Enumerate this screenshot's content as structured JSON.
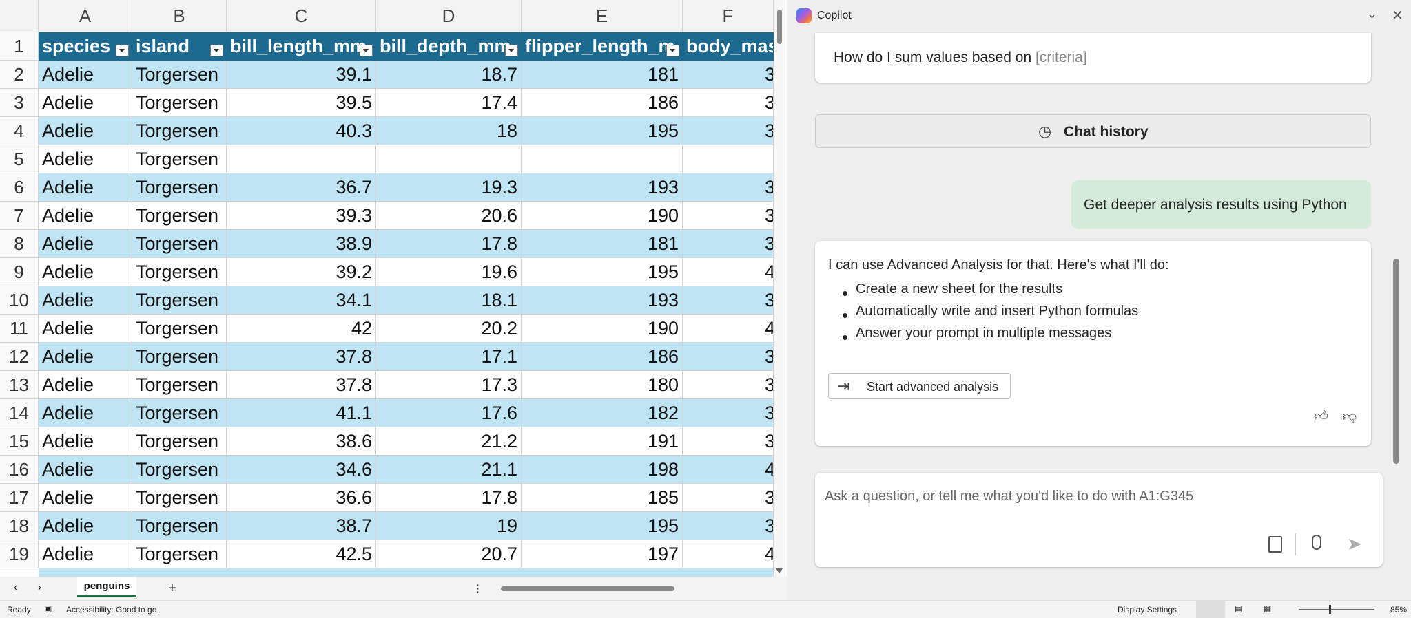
{
  "spreadsheet": {
    "column_letters": [
      "A",
      "B",
      "C",
      "D",
      "E",
      "F"
    ],
    "headers": [
      "species",
      "island",
      "bill_length_mm",
      "bill_depth_mm",
      "flipper_length_m",
      "body_mas"
    ],
    "row_numbers": [
      1,
      2,
      3,
      4,
      5,
      6,
      7,
      8,
      9,
      10,
      11,
      12,
      13,
      14,
      15,
      16,
      17,
      18,
      19
    ],
    "rows": [
      [
        "Adelie",
        "Torgersen",
        39.1,
        18.7,
        181,
        3
      ],
      [
        "Adelie",
        "Torgersen",
        39.5,
        17.4,
        186,
        3
      ],
      [
        "Adelie",
        "Torgersen",
        40.3,
        18,
        195,
        3
      ],
      [
        "Adelie",
        "Torgersen",
        null,
        null,
        null,
        null
      ],
      [
        "Adelie",
        "Torgersen",
        36.7,
        19.3,
        193,
        3
      ],
      [
        "Adelie",
        "Torgersen",
        39.3,
        20.6,
        190,
        3
      ],
      [
        "Adelie",
        "Torgersen",
        38.9,
        17.8,
        181,
        3
      ],
      [
        "Adelie",
        "Torgersen",
        39.2,
        19.6,
        195,
        4
      ],
      [
        "Adelie",
        "Torgersen",
        34.1,
        18.1,
        193,
        3
      ],
      [
        "Adelie",
        "Torgersen",
        42,
        20.2,
        190,
        4
      ],
      [
        "Adelie",
        "Torgersen",
        37.8,
        17.1,
        186,
        3
      ],
      [
        "Adelie",
        "Torgersen",
        37.8,
        17.3,
        180,
        3
      ],
      [
        "Adelie",
        "Torgersen",
        41.1,
        17.6,
        182,
        3
      ],
      [
        "Adelie",
        "Torgersen",
        38.6,
        21.2,
        191,
        3
      ],
      [
        "Adelie",
        "Torgersen",
        34.6,
        21.1,
        198,
        4
      ],
      [
        "Adelie",
        "Torgersen",
        36.6,
        17.8,
        185,
        3
      ],
      [
        "Adelie",
        "Torgersen",
        38.7,
        19,
        195,
        3
      ],
      [
        "Adelie",
        "Torgersen",
        42.5,
        20.7,
        197,
        4
      ]
    ]
  },
  "sheet_tabs": [
    "penguins"
  ],
  "status_bar": {
    "ready": "Ready",
    "accessibility": "Accessibility: Good to go",
    "display_settings": "Display Settings",
    "zoom": "85%"
  },
  "copilot": {
    "title": "Copilot",
    "suggestion": {
      "text": "How do I sum values based on",
      "placeholder": "[criteria]"
    },
    "chat_history_button": "Chat history",
    "user_message": "Get deeper analysis results using Python",
    "response": {
      "intro": "I can use Advanced Analysis for that. Here's what I'll do:",
      "bullets": [
        "Create a new sheet for the results",
        "Automatically write and insert Python formulas",
        "Answer your prompt in multiple messages"
      ],
      "action_button": "Start advanced analysis"
    },
    "input_placeholder": "Ask a question, or tell me what you'd like to do with A1:G345"
  }
}
